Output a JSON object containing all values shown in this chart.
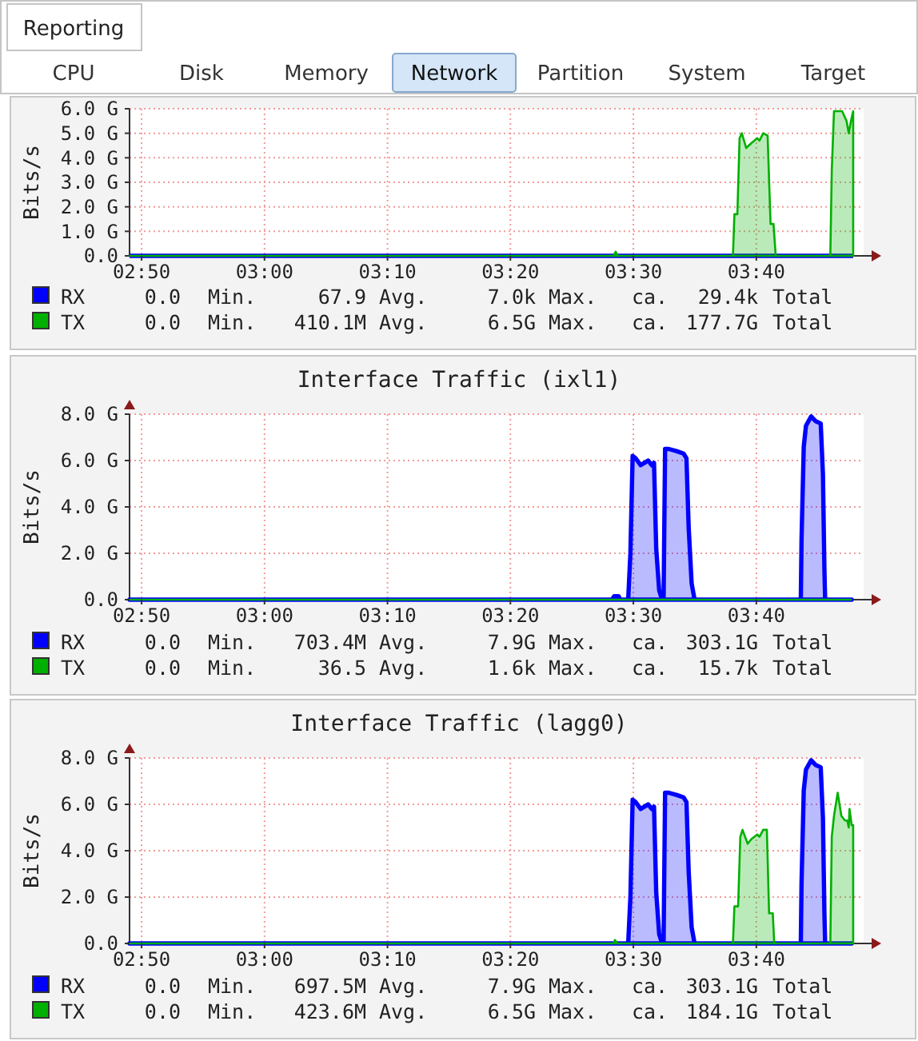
{
  "chart_data": [
    {
      "type": "other",
      "title": "Reporting",
      "annotations": [
        "CPU",
        "Disk",
        "Memory",
        "Network",
        "Partition",
        "System",
        "Target"
      ]
    },
    {
      "type": "area",
      "ylabel": "Bits/s",
      "xlim": [
        2.817,
        3.823
      ],
      "ylim": [
        0,
        6
      ],
      "grid": true,
      "legend": "bottom",
      "xticks": [
        {
          "value": 2.8333,
          "label": "02:50"
        },
        {
          "value": 3,
          "label": "03:00"
        },
        {
          "value": 3.1667,
          "label": "03:10"
        },
        {
          "value": 3.3333,
          "label": "03:20"
        },
        {
          "value": 3.5,
          "label": "03:30"
        },
        {
          "value": 3.6667,
          "label": "03:40"
        }
      ],
      "yticks": [
        {
          "value": 0,
          "label": "0.0"
        },
        {
          "value": 1,
          "label": "1.0 G"
        },
        {
          "value": 2,
          "label": "2.0 G"
        },
        {
          "value": 3,
          "label": "3.0 G"
        },
        {
          "value": 4,
          "label": "4.0 G"
        },
        {
          "value": 5,
          "label": "5.0 G"
        },
        {
          "value": 6,
          "label": "6.0 G"
        }
      ],
      "series": [
        {
          "name": "RX",
          "type": "line",
          "color": "#0000ff",
          "x": [
            2.817,
            3.798
          ],
          "values": [
            0,
            0
          ]
        },
        {
          "name": "TX",
          "color": "#00b000",
          "x": [
            2.817,
            3.473,
            3.476,
            3.479,
            3.635,
            3.637,
            3.641,
            3.644,
            3.647,
            3.653,
            3.66,
            3.668,
            3.671,
            3.676,
            3.682,
            3.686,
            3.69,
            3.693,
            3.767,
            3.769,
            3.772,
            3.783,
            3.789,
            3.792,
            3.795,
            3.798
          ],
          "values": [
            0,
            0,
            0.17,
            0,
            0,
            1.7,
            1.7,
            4.8,
            5.0,
            4.4,
            4.6,
            4.8,
            4.7,
            5.0,
            4.9,
            1.3,
            1.3,
            0,
            0,
            3.5,
            5.9,
            5.9,
            5.5,
            5.0,
            5.5,
            5.9
          ]
        }
      ],
      "annotations": [
        "0.0 Min. 67.9 Avg. 7.0k Max. ca. 29.4k Total",
        "0.0 Min. 410.1M Avg. 6.5G Max. ca. 177.7G Total"
      ]
    },
    {
      "type": "area",
      "title": "Interface Traffic (ixl1)",
      "ylabel": "Bits/s",
      "xlim": [
        2.817,
        3.823
      ],
      "ylim": [
        0,
        8
      ],
      "grid": true,
      "legend": "bottom",
      "xticks": [
        {
          "value": 2.8333,
          "label": "02:50"
        },
        {
          "value": 3,
          "label": "03:00"
        },
        {
          "value": 3.1667,
          "label": "03:10"
        },
        {
          "value": 3.3333,
          "label": "03:20"
        },
        {
          "value": 3.5,
          "label": "03:30"
        },
        {
          "value": 3.6667,
          "label": "03:40"
        }
      ],
      "yticks": [
        {
          "value": 0,
          "label": "0.0"
        },
        {
          "value": 2,
          "label": "2.0 G"
        },
        {
          "value": 4,
          "label": "4.0 G"
        },
        {
          "value": 6,
          "label": "6.0 G"
        },
        {
          "value": 8,
          "label": "8.0 G"
        }
      ],
      "series": [
        {
          "name": "RX",
          "color": "#0000ff",
          "x": [
            2.817,
            3.471,
            3.474,
            3.48,
            3.482,
            3.493,
            3.496,
            3.499,
            3.503,
            3.51,
            3.515,
            3.52,
            3.525,
            3.528,
            3.531,
            3.535,
            3.538,
            3.541,
            3.543,
            3.548,
            3.559,
            3.568,
            3.572,
            3.575,
            3.579,
            3.583,
            3.727,
            3.728,
            3.731,
            3.734,
            3.741,
            3.747,
            3.754,
            3.757,
            3.759,
            3.76,
            3.796
          ],
          "values": [
            0,
            0,
            0.15,
            0.15,
            0,
            0,
            2.0,
            6.2,
            6.1,
            5.8,
            5.9,
            6.0,
            5.8,
            5.9,
            2.2,
            0.4,
            0.1,
            0.1,
            6.5,
            6.5,
            6.4,
            6.3,
            6.1,
            3.1,
            0.7,
            0,
            0,
            2.6,
            6.6,
            7.5,
            7.9,
            7.7,
            7.6,
            5.4,
            1.3,
            0,
            0
          ]
        },
        {
          "name": "TX",
          "type": "line",
          "color": "#00b000",
          "x": [
            2.817,
            3.796
          ],
          "values": [
            0,
            0
          ]
        }
      ],
      "annotations": [
        "0.0 Min. 703.4M Avg. 7.9G Max. ca. 303.1G Total",
        "0.0 Min. 36.5 Avg. 1.6k Max. ca. 15.7k Total"
      ]
    },
    {
      "type": "area",
      "title": "Interface Traffic (lagg0)",
      "ylabel": "Bits/s",
      "xlim": [
        2.817,
        3.823
      ],
      "ylim": [
        0,
        8
      ],
      "grid": true,
      "legend": "bottom",
      "xticks": [
        {
          "value": 2.8333,
          "label": "02:50"
        },
        {
          "value": 3,
          "label": "03:00"
        },
        {
          "value": 3.1667,
          "label": "03:10"
        },
        {
          "value": 3.3333,
          "label": "03:20"
        },
        {
          "value": 3.5,
          "label": "03:30"
        },
        {
          "value": 3.6667,
          "label": "03:40"
        }
      ],
      "yticks": [
        {
          "value": 0,
          "label": "0.0"
        },
        {
          "value": 2,
          "label": "2.0 G"
        },
        {
          "value": 4,
          "label": "4.0 G"
        },
        {
          "value": 6,
          "label": "6.0 G"
        },
        {
          "value": 8,
          "label": "8.0 G"
        }
      ],
      "series": [
        {
          "name": "RX",
          "color": "#0000ff",
          "x": [
            2.817,
            3.493,
            3.496,
            3.499,
            3.503,
            3.51,
            3.515,
            3.52,
            3.525,
            3.528,
            3.531,
            3.535,
            3.538,
            3.541,
            3.543,
            3.548,
            3.559,
            3.568,
            3.572,
            3.575,
            3.579,
            3.583,
            3.727,
            3.728,
            3.731,
            3.734,
            3.741,
            3.747,
            3.754,
            3.757,
            3.759,
            3.76,
            3.796
          ],
          "values": [
            0,
            0,
            2.0,
            6.2,
            6.1,
            5.8,
            5.9,
            6.0,
            5.8,
            5.9,
            2.2,
            0.4,
            0.1,
            0.1,
            6.5,
            6.5,
            6.4,
            6.3,
            6.1,
            3.1,
            0.7,
            0,
            0,
            2.6,
            6.6,
            7.5,
            7.9,
            7.7,
            7.6,
            5.4,
            1.3,
            0,
            0
          ]
        },
        {
          "name": "TX",
          "color": "#00b000",
          "x": [
            2.817,
            3.473,
            3.475,
            3.478,
            3.635,
            3.637,
            3.642,
            3.645,
            3.648,
            3.655,
            3.66,
            3.668,
            3.671,
            3.676,
            3.681,
            3.684,
            3.689,
            3.691,
            3.767,
            3.769,
            3.772,
            3.777,
            3.782,
            3.787,
            3.79,
            3.792,
            3.793,
            3.796,
            3.798
          ],
          "values": [
            0,
            0,
            0.15,
            0,
            0,
            1.6,
            1.6,
            4.6,
            4.9,
            4.3,
            4.5,
            4.7,
            4.6,
            4.9,
            4.9,
            1.3,
            1.3,
            0,
            0,
            4.6,
            5.5,
            6.5,
            5.5,
            5.3,
            5.3,
            5.0,
            5.8,
            5.1,
            5.1
          ]
        }
      ],
      "annotations": [
        "0.0 Min. 697.5M Avg. 7.9G Max. ca. 303.1G Total",
        "0.0 Min. 423.6M Avg. 6.5G Max. ca. 184.1G Total"
      ]
    }
  ]
}
